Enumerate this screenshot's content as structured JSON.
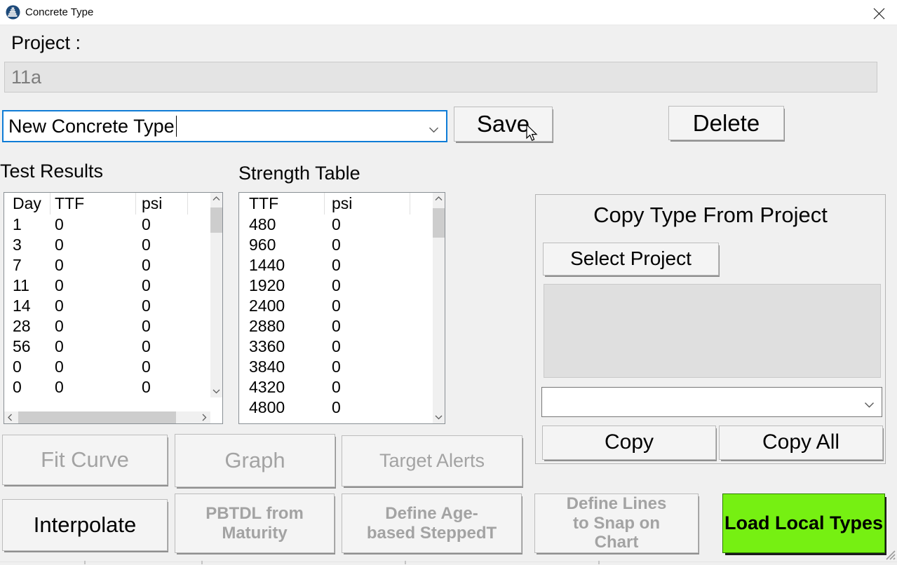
{
  "window": {
    "title": "Concrete Type"
  },
  "project": {
    "label": "Project :",
    "value": "11a"
  },
  "type_combo": {
    "value": "New Concrete Type"
  },
  "actions": {
    "save": "Save",
    "delete": "Delete"
  },
  "test_results": {
    "label": "Test Results",
    "columns": [
      "Day",
      "TTF",
      "psi"
    ],
    "rows": [
      [
        "1",
        "0",
        "0"
      ],
      [
        "3",
        "0",
        "0"
      ],
      [
        "7",
        "0",
        "0"
      ],
      [
        "11",
        "0",
        "0"
      ],
      [
        "14",
        "0",
        "0"
      ],
      [
        "28",
        "0",
        "0"
      ],
      [
        "56",
        "0",
        "0"
      ],
      [
        "0",
        "0",
        "0"
      ],
      [
        "0",
        "0",
        "0"
      ]
    ]
  },
  "strength_table": {
    "label": "Strength Table",
    "columns": [
      "TTF",
      "psi"
    ],
    "rows": [
      [
        "480",
        "0"
      ],
      [
        "960",
        "0"
      ],
      [
        "1440",
        "0"
      ],
      [
        "1920",
        "0"
      ],
      [
        "2400",
        "0"
      ],
      [
        "2880",
        "0"
      ],
      [
        "3360",
        "0"
      ],
      [
        "3840",
        "0"
      ],
      [
        "4320",
        "0"
      ],
      [
        "4800",
        "0"
      ]
    ]
  },
  "copy_group": {
    "title": "Copy Type From Project",
    "select_project_label": "Select Project",
    "combo_value": "",
    "copy_label": "Copy",
    "copy_all_label": "Copy All"
  },
  "bottom_buttons": {
    "fit_curve": "Fit Curve",
    "graph": "Graph",
    "target_alerts": "Target Alerts",
    "interpolate": "Interpolate",
    "pbtdl": "PBTDL from Maturity",
    "define_age": "Define Age-based SteppedT",
    "define_lines": "Define Lines to Snap on Chart",
    "load_local": "Load Local Types"
  },
  "colors": {
    "accent_green": "#76f012",
    "focus_blue": "#0f7cd6"
  }
}
